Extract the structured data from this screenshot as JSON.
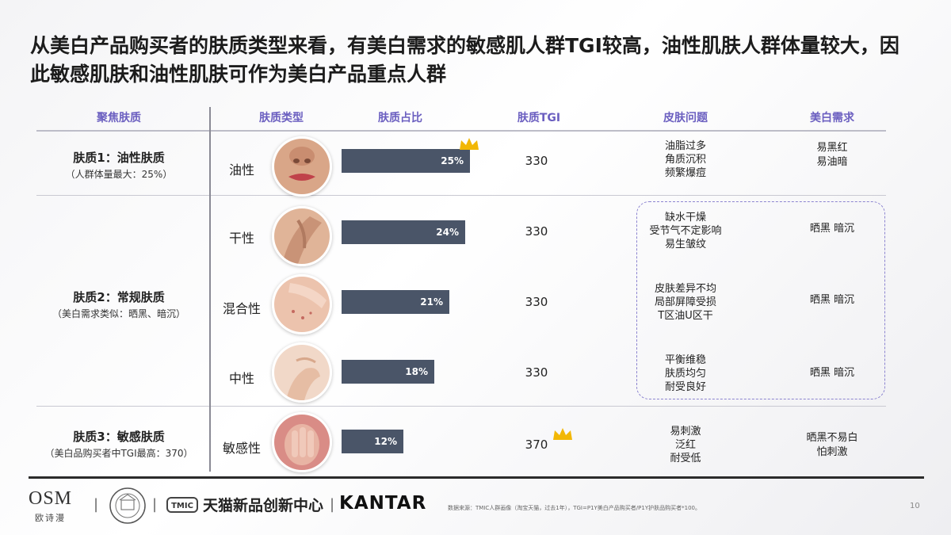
{
  "title": "从美白产品购买者的肤质类型来看，有美白需求的敏感肌人群TGI较高，油性肌肤人群体量较大，因此敏感肌肤和油性肌肤可作为美白产品重点人群",
  "headers": {
    "focus": "聚焦肤质",
    "skin_type": "肤质类型",
    "share": "肤质占比",
    "tgi": "肤质TGI",
    "problems": "皮肤问题",
    "need": "美白需求"
  },
  "groups": [
    {
      "name": "肤质1：油性肤质",
      "sub": "（人群体量最大：25%）"
    },
    {
      "name": "肤质2：常规肤质",
      "sub": "（美白需求类似：晒黑、暗沉）"
    },
    {
      "name": "肤质3：敏感肤质",
      "sub": "（美白品购买者中TGI最高：370）"
    }
  ],
  "rows": [
    {
      "type": "油性",
      "share_label": "25%",
      "tgi": "330",
      "problems": [
        "油脂过多",
        "角质沉积",
        "频繁爆痘"
      ],
      "need": [
        "易黑红",
        "易油暗"
      ],
      "crown_share": true,
      "crown_tgi": false
    },
    {
      "type": "干性",
      "share_label": "24%",
      "tgi": "330",
      "problems": [
        "缺水干燥",
        "受节气不定影响",
        "易生皱纹"
      ],
      "need": [
        "晒黑  暗沉"
      ],
      "crown_share": false,
      "crown_tgi": false
    },
    {
      "type": "混合性",
      "share_label": "21%",
      "tgi": "330",
      "problems": [
        "皮肤差异不均",
        "局部屏障受损",
        "T区油U区干"
      ],
      "need": [
        "晒黑  暗沉"
      ],
      "crown_share": false,
      "crown_tgi": false
    },
    {
      "type": "中性",
      "share_label": "18%",
      "tgi": "330",
      "problems": [
        "平衡维稳",
        "肤质均匀",
        "耐受良好"
      ],
      "need": [
        "晒黑  暗沉"
      ],
      "crown_share": false,
      "crown_tgi": false
    },
    {
      "type": "敏感性",
      "share_label": "12%",
      "tgi": "370",
      "problems": [
        "易刺激",
        "泛红",
        "耐受低"
      ],
      "need": [
        "晒黑不易白",
        "怕刺激"
      ],
      "crown_share": false,
      "crown_tgi": true
    }
  ],
  "chart_data": {
    "type": "bar",
    "categories": [
      "油性",
      "干性",
      "混合性",
      "中性",
      "敏感性"
    ],
    "values": [
      25,
      24,
      21,
      18,
      12
    ],
    "tgi": [
      330,
      330,
      330,
      330,
      370
    ],
    "unit": "%"
  },
  "colors": {
    "bar": "#4a5568",
    "header": "#6b5fc0",
    "crown": "#f2b705",
    "dash": "#8c84d0"
  },
  "footer": {
    "osm": "OSM",
    "osm_sub": "欧诗漫",
    "sep": "|",
    "tmic_box": "TMIC",
    "tmic_name": "天猫新品创新中心",
    "kantar": "KANTAR",
    "source": "数据来源：TMIC人群画像（淘宝天猫，过去1年），TGI=P1Y美白产品购买者/P1Y护肤品购买者*100。",
    "page": "10"
  }
}
